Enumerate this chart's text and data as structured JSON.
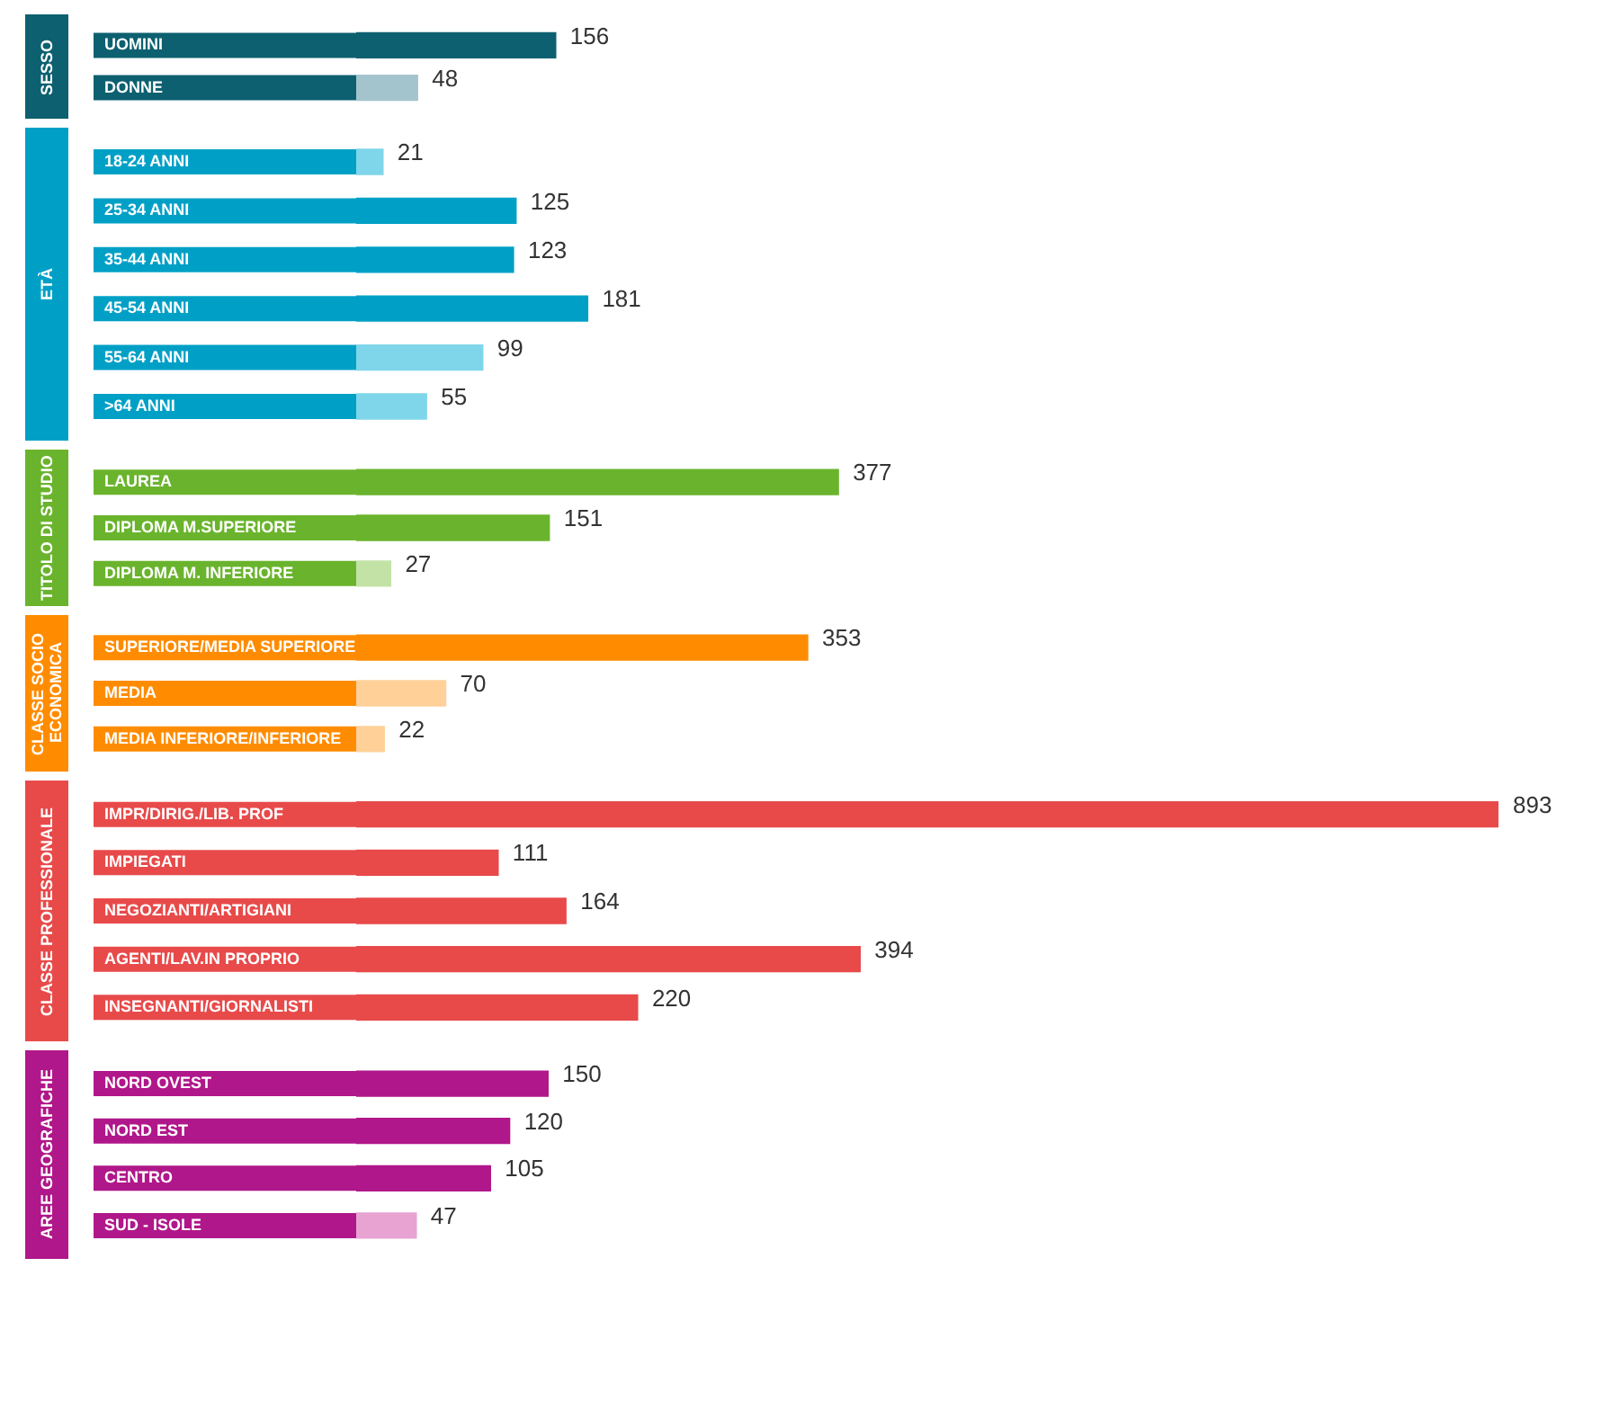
{
  "chart_data": [
    {
      "type": "bar",
      "orientation": "horizontal",
      "title": "SESSO",
      "categories": [
        "UOMINI",
        "DONNE"
      ],
      "values": [
        156,
        48
      ],
      "color": "#0d6070",
      "colors": [
        "#0d6070",
        "#a3c4cc"
      ],
      "data_labels": true
    },
    {
      "type": "bar",
      "orientation": "horizontal",
      "title": "ETÀ",
      "categories": [
        "18-24 ANNI",
        "25-34 ANNI",
        "35-44 ANNI",
        "45-54 ANNI",
        "55-64 ANNI",
        ">64 ANNI"
      ],
      "values": [
        21,
        125,
        123,
        181,
        99,
        55
      ],
      "color": "#00a0c6",
      "colors": [
        "#7fd6ea",
        "#00a0c6",
        "#00a0c6",
        "#00a0c6",
        "#7fd6ea",
        "#7fd6ea"
      ],
      "data_labels": true
    },
    {
      "type": "bar",
      "orientation": "horizontal",
      "title": "TITOLO DI STUDIO",
      "categories": [
        "LAUREA",
        "DIPLOMA M.SUPERIORE",
        "DIPLOMA M. INFERIORE"
      ],
      "values": [
        377,
        151,
        27
      ],
      "color": "#6ab42d",
      "colors": [
        "#6ab42d",
        "#6ab42d",
        "#c3e3a6"
      ],
      "data_labels": true
    },
    {
      "type": "bar",
      "orientation": "horizontal",
      "title": "CLASSE SOCIO ECONOMICA",
      "categories": [
        "SUPERIORE/MEDIA SUPERIORE",
        "MEDIA",
        "MEDIA INFERIORE/INFERIORE"
      ],
      "values": [
        353,
        70,
        22
      ],
      "color": "#ff8c00",
      "colors": [
        "#ff8c00",
        "#ffd199",
        "#ffd199"
      ],
      "data_labels": true
    },
    {
      "type": "bar",
      "orientation": "horizontal",
      "title": "CLASSE PROFESSIONALE",
      "categories": [
        "IMPR/DIRIG./LIB. PROF",
        "IMPIEGATI",
        "NEGOZIANTI/ARTIGIANI",
        "AGENTI/LAV.IN PROPRIO",
        "INSEGNANTI/GIORNALISTI"
      ],
      "values": [
        893,
        111,
        164,
        394,
        220
      ],
      "color": "#e84a4a",
      "colors": [
        "#e84a4a",
        "#e84a4a",
        "#e84a4a",
        "#e84a4a",
        "#e84a4a"
      ],
      "data_labels": true
    },
    {
      "type": "bar",
      "orientation": "horizontal",
      "title": "AREE GEOGRAFICHE",
      "categories": [
        "NORD OVEST",
        "NORD EST",
        "CENTRO",
        "SUD - ISOLE"
      ],
      "values": [
        150,
        120,
        105,
        47
      ],
      "color": "#b0178a",
      "colors": [
        "#b0178a",
        "#b0178a",
        "#b0178a",
        "#e8a3d3"
      ],
      "data_labels": true
    }
  ]
}
